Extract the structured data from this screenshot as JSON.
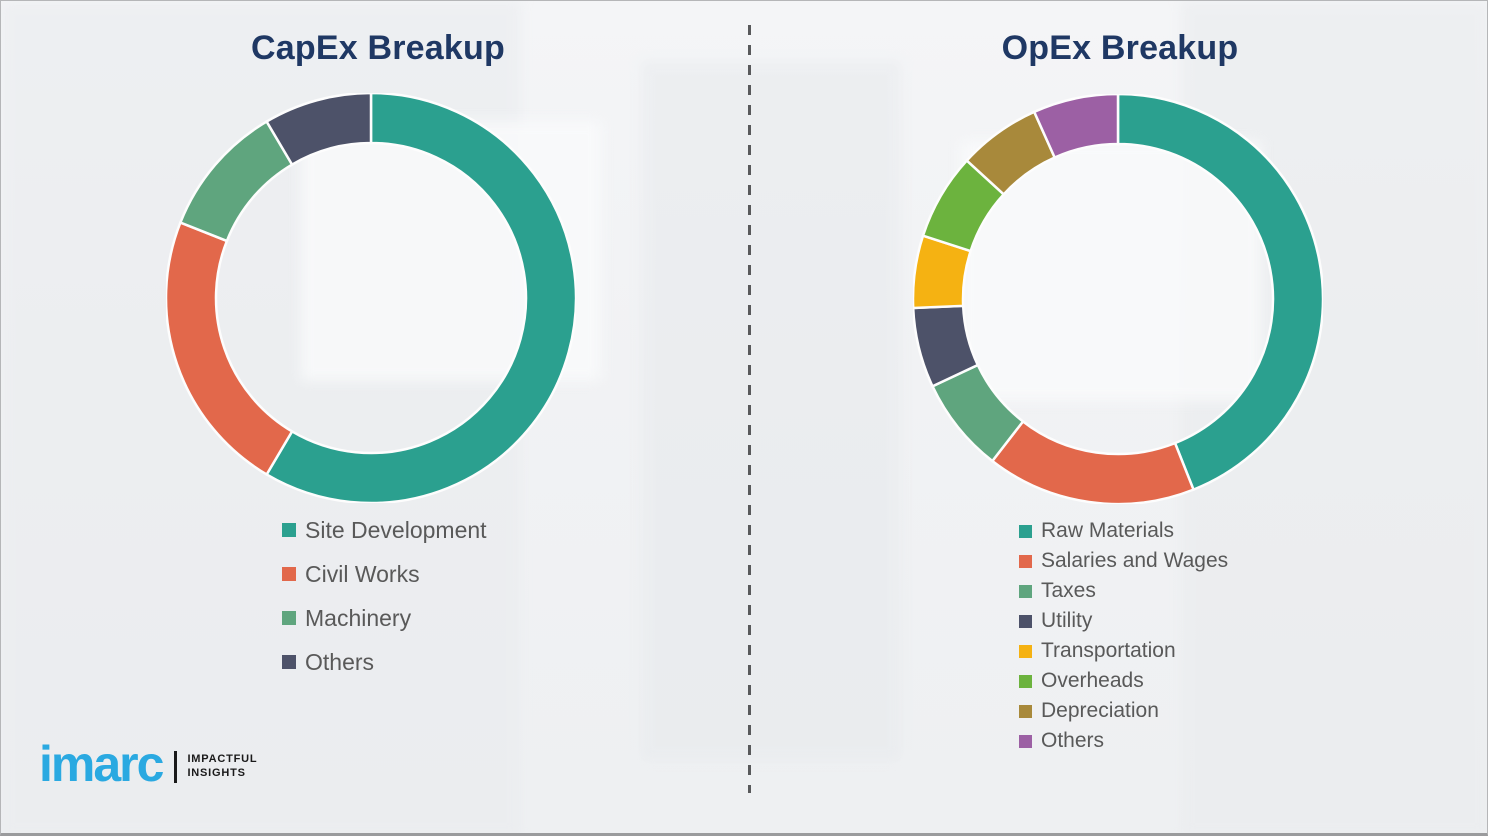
{
  "page": {
    "capex_title": "CapEx Breakup",
    "opex_title": "OpEx Breakup"
  },
  "logo": {
    "brand": "imarc",
    "tagline_line1": "IMPACTFUL",
    "tagline_line2": "INSIGHTS",
    "brand_color": "#2AA9E1"
  },
  "divider_color": "#58595b",
  "title_color": "#1F3864",
  "legend_text_color": "#595959",
  "chart_data": [
    {
      "type": "pie",
      "variant": "donut",
      "title": "CapEx Breakup",
      "categories": [
        "Site Development",
        "Civil Works",
        "Machinery",
        "Others"
      ],
      "values": [
        58.5,
        22.5,
        10.5,
        8.5
      ],
      "unit": "percent (estimated from arc angles, no labels shown)",
      "colors": [
        "#2BA08F",
        "#E2684B",
        "#5FA57E",
        "#4D5269"
      ],
      "start_angle_deg": 0,
      "direction": "clockwise",
      "outer_radius": 205,
      "inner_radius": 155,
      "legend_position": "below-left"
    },
    {
      "type": "pie",
      "variant": "donut",
      "title": "OpEx Breakup",
      "categories": [
        "Raw Materials",
        "Salaries and Wages",
        "Taxes",
        "Utility",
        "Transportation",
        "Overheads",
        "Depreciation",
        "Others"
      ],
      "values": [
        44,
        16.5,
        7.5,
        6.3,
        5.7,
        6.8,
        6.5,
        6.7
      ],
      "unit": "percent (estimated from arc angles, no labels shown)",
      "colors": [
        "#2BA08F",
        "#E2684B",
        "#5FA57E",
        "#4D5269",
        "#F5B212",
        "#6CB33E",
        "#A8893B",
        "#9C60A4"
      ],
      "start_angle_deg": 0,
      "direction": "clockwise",
      "outer_radius": 205,
      "inner_radius": 155,
      "legend_position": "below-left"
    }
  ]
}
